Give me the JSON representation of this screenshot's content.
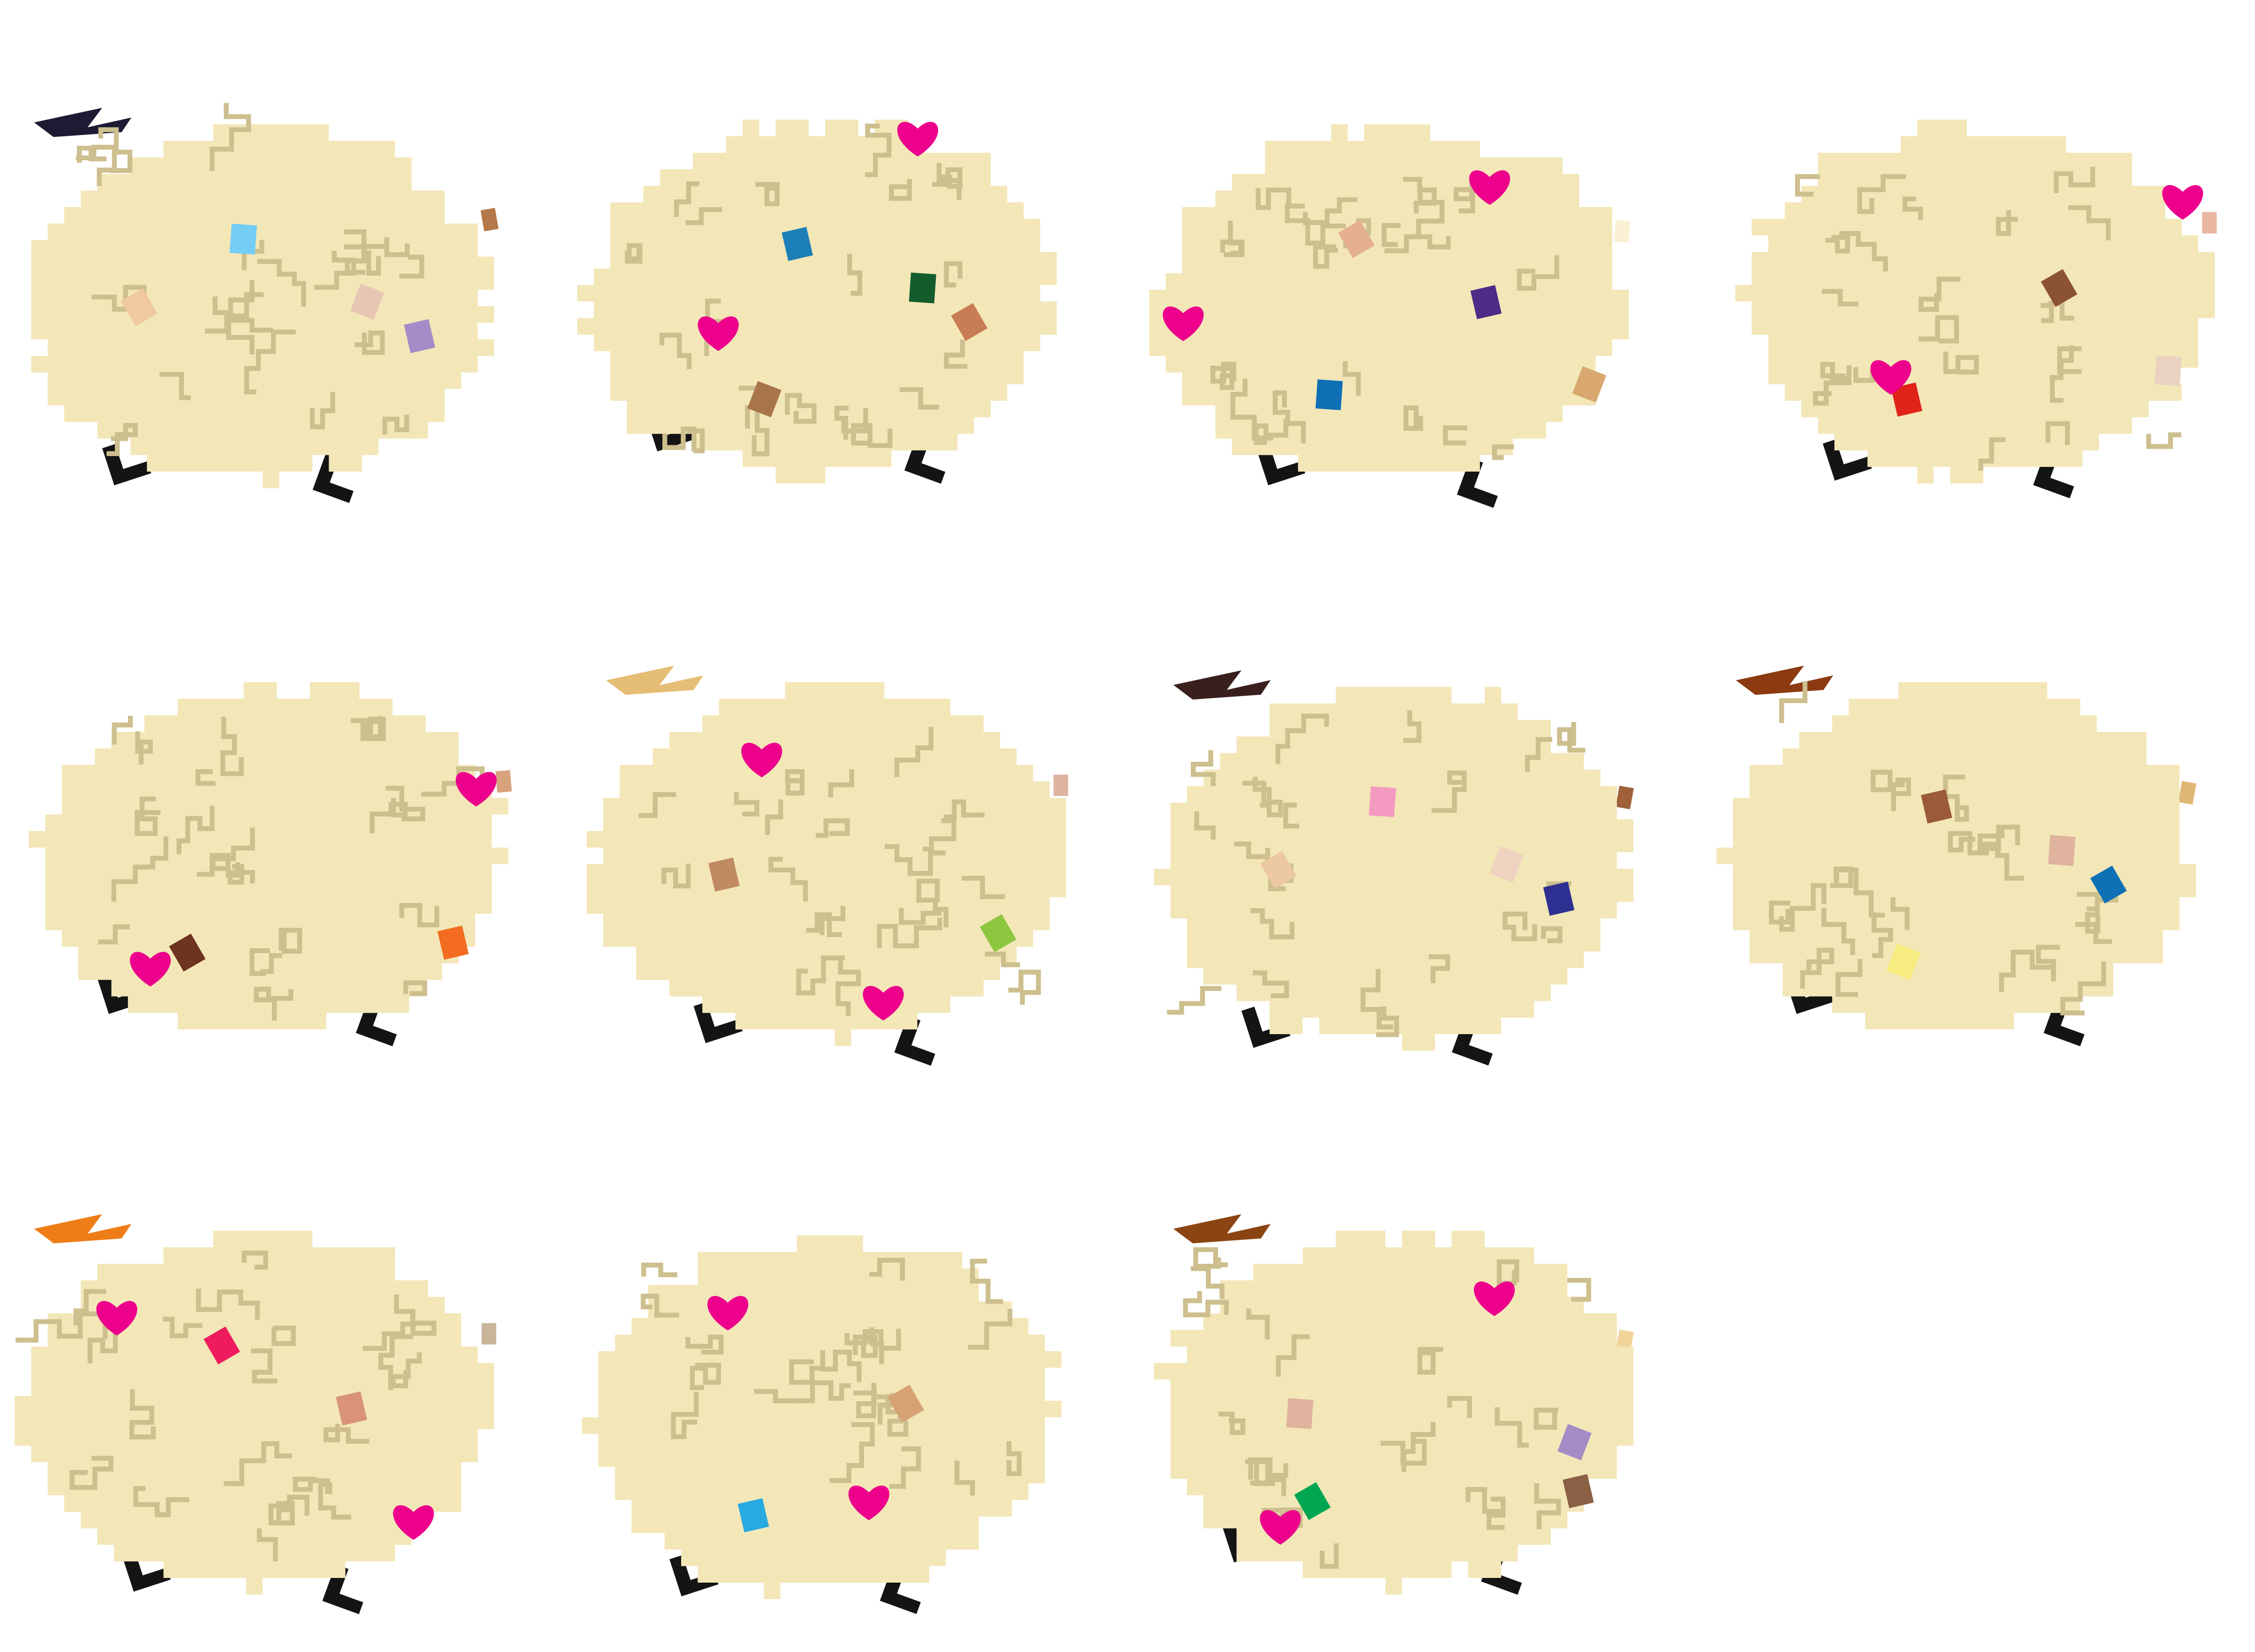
{
  "colors": {
    "background": "#ffffff",
    "fleece": "#f3e7b8",
    "wrinkle": "#cdbf8e",
    "leg": "#141414",
    "heart": "#ec008c"
  },
  "creatures": [
    {
      "hearts": 0,
      "accessories": [
        {
          "icon": "horn-icon",
          "color": "#1d1a33"
        },
        {
          "icon": "ear-tag-icon",
          "color": "#b5784b"
        },
        {
          "icon": "patch-icon",
          "color": "#f0c9a0"
        },
        {
          "icon": "patch-icon",
          "color": "#a58bc7"
        },
        {
          "icon": "patch-icon",
          "color": "#73cdf5"
        },
        {
          "icon": "patch-icon",
          "color": "#e8c6b4"
        }
      ]
    },
    {
      "hearts": 2,
      "accessories": [
        {
          "icon": "patch-icon",
          "color": "#c97d55"
        },
        {
          "icon": "patch-icon",
          "color": "#1c7fb8"
        },
        {
          "icon": "patch-icon",
          "color": "#135c2b"
        },
        {
          "icon": "patch-icon",
          "color": "#a8754a"
        }
      ]
    },
    {
      "hearts": 2,
      "accessories": [
        {
          "icon": "patch-icon",
          "color": "#e4b08e"
        },
        {
          "icon": "patch-icon",
          "color": "#4c2c86"
        },
        {
          "icon": "patch-icon",
          "color": "#0f70b6"
        },
        {
          "icon": "patch-icon",
          "color": "#d8a86f"
        },
        {
          "icon": "ear-tag-icon",
          "color": "#fbf0d3"
        }
      ]
    },
    {
      "hearts": 2,
      "accessories": [
        {
          "icon": "patch-icon",
          "color": "#8c5236"
        },
        {
          "icon": "patch-icon",
          "color": "#e2231a"
        },
        {
          "icon": "patch-icon",
          "color": "#ead2c1"
        },
        {
          "icon": "ear-tag-icon",
          "color": "#e8b6a1"
        }
      ]
    },
    {
      "hearts": 2,
      "accessories": [
        {
          "icon": "patch-icon",
          "color": "#6e3321"
        },
        {
          "icon": "patch-icon",
          "color": "#f36c21"
        },
        {
          "icon": "ear-tag-icon",
          "color": "#d8a27c"
        }
      ]
    },
    {
      "hearts": 2,
      "accessories": [
        {
          "icon": "horn-icon",
          "color": "#e6bd74"
        },
        {
          "icon": "patch-icon",
          "color": "#8dc63f"
        },
        {
          "icon": "patch-icon",
          "color": "#c08a62"
        },
        {
          "icon": "ear-tag-icon",
          "color": "#ddb4a0"
        }
      ]
    },
    {
      "hearts": 0,
      "accessories": [
        {
          "icon": "horn-icon",
          "color": "#3a1f1f"
        },
        {
          "icon": "patch-icon",
          "color": "#ecc9a0"
        },
        {
          "icon": "patch-icon",
          "color": "#2e3192"
        },
        {
          "icon": "patch-icon",
          "color": "#f49ac1"
        },
        {
          "icon": "patch-icon",
          "color": "#f0d2c0"
        },
        {
          "icon": "ear-tag-icon",
          "color": "#a0613a"
        }
      ]
    },
    {
      "hearts": 0,
      "accessories": [
        {
          "icon": "horn-icon",
          "color": "#8b3a12"
        },
        {
          "icon": "patch-icon",
          "color": "#0f70b6"
        },
        {
          "icon": "patch-icon",
          "color": "#9b5a3a"
        },
        {
          "icon": "patch-icon",
          "color": "#dfb39e"
        },
        {
          "icon": "patch-icon",
          "color": "#f7ec7f"
        },
        {
          "icon": "ear-tag-icon",
          "color": "#e0b774"
        }
      ]
    },
    {
      "hearts": 2,
      "accessories": [
        {
          "icon": "horn-icon",
          "color": "#ef7d17"
        },
        {
          "icon": "patch-icon",
          "color": "#ee1c5f"
        },
        {
          "icon": "patch-icon",
          "color": "#d8937a"
        },
        {
          "icon": "ear-tag-icon",
          "color": "#c8b59a"
        }
      ]
    },
    {
      "hearts": 2,
      "accessories": [
        {
          "icon": "patch-icon",
          "color": "#d6a274"
        },
        {
          "icon": "patch-icon",
          "color": "#27a9e1"
        }
      ]
    },
    {
      "hearts": 2,
      "accessories": [
        {
          "icon": "horn-icon",
          "color": "#8b4513"
        },
        {
          "icon": "patch-icon",
          "color": "#00a651"
        },
        {
          "icon": "patch-icon",
          "color": "#8b6146"
        },
        {
          "icon": "patch-icon",
          "color": "#dfb39e"
        },
        {
          "icon": "patch-icon",
          "color": "#a38bc6"
        },
        {
          "icon": "ear-tag-icon",
          "color": "#f0d49a"
        }
      ]
    }
  ]
}
